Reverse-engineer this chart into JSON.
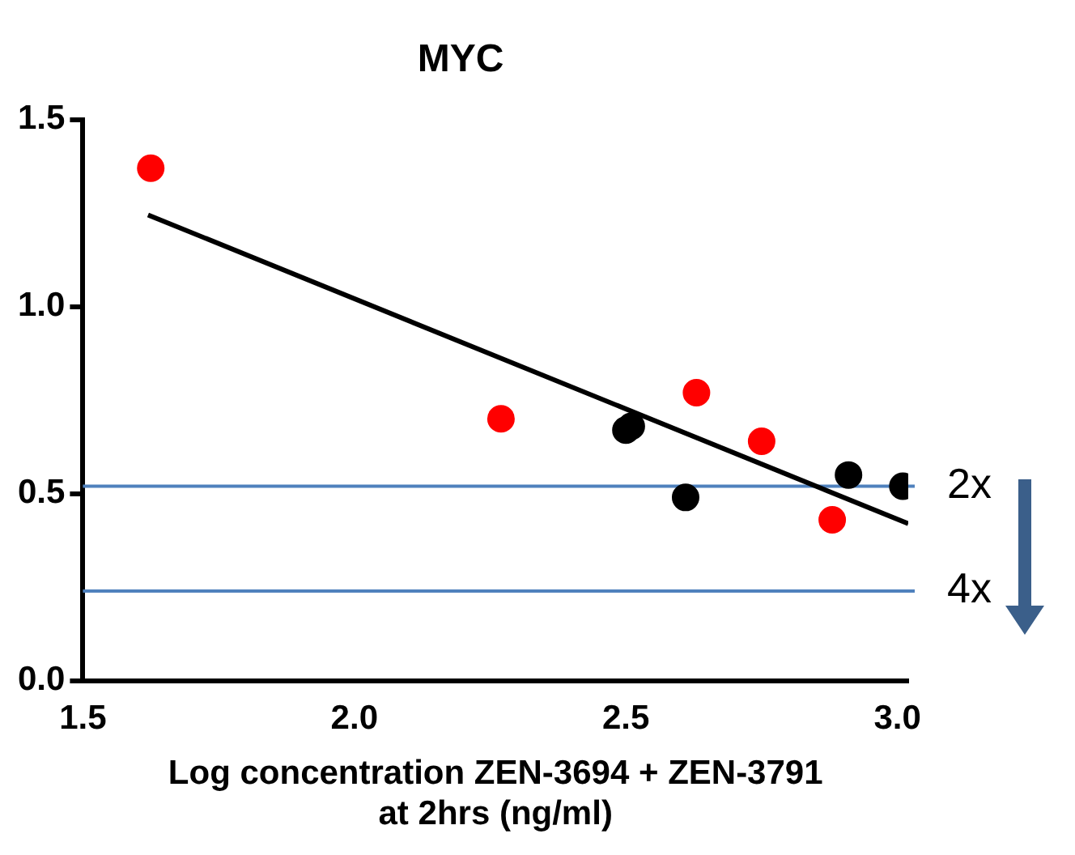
{
  "chart_data": {
    "type": "scatter",
    "title": "MYC",
    "xlabel": "Log concentration ZEN-3694 + ZEN-3791\nat 2hrs (ng/ml)",
    "xlim": [
      1.5,
      3.02
    ],
    "xticks": [
      1.5,
      {
        "value": 2,
        "label": "2.0"
      },
      2.5,
      {
        "value": 3,
        "label": "3.0"
      }
    ],
    "ylim": [
      0,
      1.5
    ],
    "yticks": [
      {
        "value": 0,
        "label": "0.0"
      },
      0.5,
      {
        "value": 1,
        "label": "1.0"
      },
      1.5
    ],
    "grid": false,
    "legend": false,
    "marker": "circle",
    "series": [
      {
        "color": "#ff0000",
        "x": [
          1.625,
          2.27,
          2.63,
          2.75,
          2.88
        ],
        "values": [
          1.37,
          0.7,
          0.77,
          0.64,
          0.43
        ]
      },
      {
        "color": "#000000",
        "x": [
          2.5,
          2.51,
          2.61,
          2.91,
          3.01
        ],
        "values": [
          0.67,
          0.68,
          0.49,
          0.55,
          0.52
        ]
      },
      {
        "type": "line",
        "color": "#000000",
        "marker": "none",
        "line_style": "solid",
        "x": [
          1.62,
          3.02
        ],
        "values": [
          1.245,
          0.42
        ]
      }
    ],
    "ref_lines": [
      {
        "axis": "y",
        "value": 0.52,
        "label": "2x",
        "color": "#4f81bd"
      },
      {
        "axis": "y",
        "value": 0.24,
        "label": "4x",
        "color": "#4f81bd"
      }
    ]
  }
}
